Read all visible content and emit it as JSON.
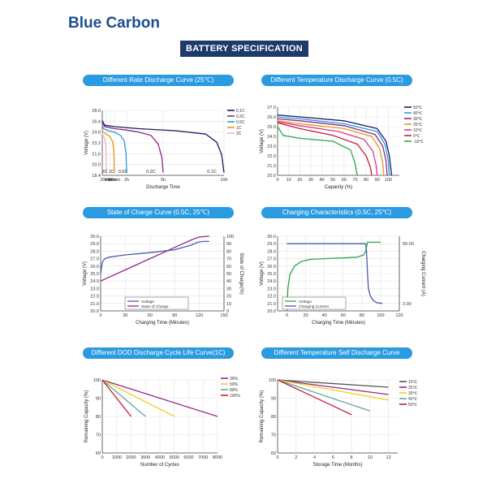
{
  "header": {
    "brand": "Blue Carbon",
    "banner": "BATTERY SPECIFICATION"
  },
  "chart_data": [
    {
      "id": "c1",
      "type": "line",
      "title": "Different Rate Discharge Curve (25℃)",
      "xlabel": "Discharge Time",
      "ylabel": "Voltage (V)",
      "ylim": [
        18.4,
        28.0
      ],
      "yticks": [
        18.4,
        20.0,
        21.6,
        23.2,
        24.8,
        26.4,
        28.0
      ],
      "yticklabels": [
        "18.4",
        "20.0",
        "21.6",
        "23.2",
        "24.8",
        "26.4",
        "28.0"
      ],
      "xlim": [
        0,
        10
      ],
      "xticks": [
        0.33,
        0.67,
        1,
        2,
        5,
        10
      ],
      "xticklabels": [
        "20min",
        "40min",
        "60min",
        "2h",
        "5h",
        "10h"
      ],
      "series": [
        {
          "name": "0.1C",
          "color": "#1a1a5e",
          "x": [
            0,
            0.2,
            1,
            3,
            6,
            8.5,
            9.4,
            9.8,
            10
          ],
          "y": [
            26.5,
            25.8,
            25.6,
            25.3,
            25.0,
            24.5,
            23.3,
            21.5,
            18.8
          ]
        },
        {
          "name": "0.2C",
          "color": "#8e2a8a",
          "x": [
            0,
            0.2,
            1,
            2,
            3,
            4,
            4.6,
            4.9,
            5
          ],
          "y": [
            26.2,
            25.6,
            25.3,
            25.1,
            24.8,
            24.3,
            23.0,
            21.0,
            18.8
          ]
        },
        {
          "name": "0.5C",
          "color": "#2a9be0",
          "x": [
            0,
            0.1,
            0.5,
            1,
            1.5,
            1.8,
            1.95,
            2
          ],
          "y": [
            25.8,
            25.3,
            25.0,
            24.8,
            24.3,
            23.5,
            21.5,
            18.8
          ]
        },
        {
          "name": "1C",
          "color": "#e59a1a",
          "x": [
            0,
            0.05,
            0.3,
            0.6,
            0.85,
            0.95,
            1
          ],
          "y": [
            25.2,
            24.8,
            24.5,
            24.2,
            23.4,
            21.8,
            18.8
          ]
        },
        {
          "name": "2C",
          "color": "#f2b6c4",
          "x": [
            0,
            0.05,
            0.2,
            0.3,
            0.33
          ],
          "y": [
            24.8,
            24.3,
            23.8,
            22.5,
            18.8
          ]
        }
      ],
      "annotations": [
        "2C",
        "1C",
        "0.5C",
        "0.2C",
        "0.1C"
      ]
    },
    {
      "id": "c2",
      "type": "line",
      "title": "Different Temperature Discharge  Curve (0.5C)",
      "xlabel": "Capacity (%)",
      "ylabel": "Voltage (V)",
      "xlim": [
        0,
        110
      ],
      "xticks": [
        0,
        10,
        20,
        30,
        40,
        50,
        60,
        70,
        80,
        90,
        100
      ],
      "ylim": [
        20.0,
        27.0
      ],
      "yticks": [
        20.0,
        21.0,
        22.0,
        23.0,
        24.0,
        25.0,
        26.0,
        27.0
      ],
      "series": [
        {
          "name": "50℃",
          "color": "#1a1a5e",
          "x": [
            0,
            20,
            60,
            90,
            98,
            101,
            103
          ],
          "y": [
            26.2,
            26.0,
            25.6,
            24.8,
            23.5,
            22.0,
            20.0
          ]
        },
        {
          "name": "40℃",
          "color": "#2a9be0",
          "x": [
            0,
            20,
            60,
            90,
            97,
            100,
            101
          ],
          "y": [
            26.0,
            25.8,
            25.3,
            24.5,
            23.2,
            21.5,
            20.0
          ]
        },
        {
          "name": "30℃",
          "color": "#8e2a8a",
          "x": [
            0,
            20,
            60,
            88,
            95,
            98,
            99
          ],
          "y": [
            25.8,
            25.6,
            25.1,
            24.2,
            23.0,
            21.5,
            20.0
          ]
        },
        {
          "name": "20℃",
          "color": "#e59a1a",
          "x": [
            0,
            20,
            60,
            85,
            92,
            95,
            96
          ],
          "y": [
            25.6,
            25.3,
            24.8,
            24.0,
            22.8,
            21.3,
            20.0
          ]
        },
        {
          "name": "10℃",
          "color": "#d83a8a",
          "x": [
            0,
            20,
            55,
            78,
            86,
            89,
            90
          ],
          "y": [
            25.5,
            25.1,
            24.5,
            23.7,
            22.5,
            21.0,
            20.0
          ]
        },
        {
          "name": "0℃",
          "color": "#c41e3a",
          "x": [
            0,
            20,
            50,
            72,
            80,
            84,
            85
          ],
          "y": [
            25.4,
            24.8,
            24.1,
            23.2,
            22.0,
            20.8,
            20.0
          ]
        },
        {
          "name": "-10℃",
          "color": "#2aa84a",
          "x": [
            0,
            5,
            20,
            50,
            66,
            70,
            72
          ],
          "y": [
            25.0,
            24.1,
            23.8,
            23.5,
            22.6,
            21.2,
            20.0
          ]
        }
      ]
    },
    {
      "id": "c3",
      "type": "line",
      "title": "State of Charge  Curve (0.5C, 25℃)",
      "xlabel": "Charging Time (Minutes)",
      "ylabel": "Voltage (V)",
      "y2label": "State of Charge(%)",
      "xlim": [
        0,
        150
      ],
      "xticks": [
        0,
        30,
        60,
        90,
        120,
        150
      ],
      "ylim": [
        20.0,
        30.0
      ],
      "yticks": [
        20.0,
        21.0,
        22.0,
        23.0,
        24.0,
        25.0,
        26.0,
        27.0,
        28.0,
        29.0,
        30.0
      ],
      "y2lim": [
        0,
        100
      ],
      "y2ticks": [
        0,
        10,
        20,
        30,
        40,
        50,
        60,
        70,
        80,
        90,
        100
      ],
      "series": [
        {
          "name": "Voltage",
          "color": "#4a5aa8",
          "axis": "y",
          "x": [
            0,
            2,
            5,
            10,
            30,
            60,
            90,
            110,
            118,
            125,
            132
          ],
          "y": [
            25.0,
            26.5,
            27.0,
            27.2,
            27.5,
            27.8,
            28.2,
            28.8,
            29.2,
            29.3,
            29.3
          ]
        },
        {
          "name": "State of Charge",
          "color": "#8e2a8a",
          "axis": "y2",
          "x": [
            0,
            30,
            60,
            90,
            110,
            120,
            132
          ],
          "y": [
            40,
            55,
            70,
            85,
            95,
            99,
            100
          ]
        }
      ]
    },
    {
      "id": "c4",
      "type": "line",
      "title": "Charging Characteristics (0.5C, 25℃)",
      "xlabel": "Charging Time (Minutes)",
      "ylabel": "Voltage (V)",
      "y2label": "Charging Current (A)",
      "xlim": [
        -10,
        120
      ],
      "xticks": [
        0,
        20,
        40,
        60,
        80,
        100,
        120
      ],
      "ylim": [
        20.0,
        30.0
      ],
      "yticks": [
        20.0,
        21.0,
        22.0,
        23.0,
        24.0,
        25.0,
        26.0,
        27.0,
        28.0,
        29.0,
        30.0
      ],
      "y2ticklabels": [
        "50.00",
        "2.00"
      ],
      "series": [
        {
          "name": "Voltage",
          "color": "#2aa84a",
          "axis": "y",
          "x": [
            0,
            1,
            3,
            8,
            15,
            25,
            40,
            60,
            75,
            82,
            84,
            86,
            88,
            100
          ],
          "y": [
            20.0,
            23.0,
            24.8,
            26.0,
            26.6,
            26.9,
            27.0,
            27.1,
            27.2,
            27.5,
            28.0,
            29.2,
            29.2,
            29.2
          ]
        },
        {
          "name": "Charging Current",
          "color": "#4a5aa8",
          "axis": "y",
          "x": [
            0,
            84,
            85,
            86,
            87,
            89,
            92,
            96,
            102
          ],
          "y": [
            29.0,
            29.0,
            28.0,
            25.0,
            23.0,
            22.0,
            21.4,
            21.1,
            21.0
          ]
        }
      ]
    },
    {
      "id": "c5",
      "type": "line",
      "title": "Different DOD Discharge Cycle Life Curve(1C)",
      "xlabel": "Number of Cycles",
      "ylabel": "Remaining Capacity (%)",
      "xlim": [
        0,
        8000
      ],
      "xticks": [
        0,
        1000,
        2000,
        3000,
        4000,
        5000,
        6000,
        7000,
        8000
      ],
      "ylim": [
        60,
        100
      ],
      "yticks": [
        60,
        70,
        80,
        90,
        100
      ],
      "series": [
        {
          "name": "30%",
          "color": "#8e2a8a",
          "x": [
            0,
            8000
          ],
          "y": [
            100,
            80
          ]
        },
        {
          "name": "50%",
          "color": "#f0d020",
          "x": [
            0,
            5000
          ],
          "y": [
            100,
            80
          ]
        },
        {
          "name": "80%",
          "color": "#5aa8a0",
          "x": [
            0,
            3000
          ],
          "y": [
            100,
            80
          ]
        },
        {
          "name": "100%",
          "color": "#c41e3a",
          "x": [
            0,
            2000
          ],
          "y": [
            100,
            80
          ]
        }
      ]
    },
    {
      "id": "c6",
      "type": "line",
      "title": "Different Temperature Self Discharge Curve",
      "xlabel": "Storage Time (Months)",
      "ylabel": "Remaining Capacity (%)",
      "xlim": [
        0,
        13
      ],
      "xticks": [
        0,
        2,
        4,
        6,
        8,
        10,
        12
      ],
      "ylim": [
        60,
        100
      ],
      "yticks": [
        60,
        70,
        80,
        90,
        100
      ],
      "series": [
        {
          "name": "10℃",
          "color": "#555555",
          "x": [
            0,
            12
          ],
          "y": [
            100,
            96
          ]
        },
        {
          "name": "25℃",
          "color": "#8e2a8a",
          "x": [
            0,
            12
          ],
          "y": [
            100,
            92
          ]
        },
        {
          "name": "30℃",
          "color": "#f0d020",
          "x": [
            0,
            12
          ],
          "y": [
            100,
            89
          ]
        },
        {
          "name": "40℃",
          "color": "#5aa8a0",
          "x": [
            0,
            10
          ],
          "y": [
            100,
            83
          ]
        },
        {
          "name": "50℃",
          "color": "#c41e3a",
          "x": [
            0,
            8
          ],
          "y": [
            100,
            81
          ]
        }
      ]
    }
  ]
}
